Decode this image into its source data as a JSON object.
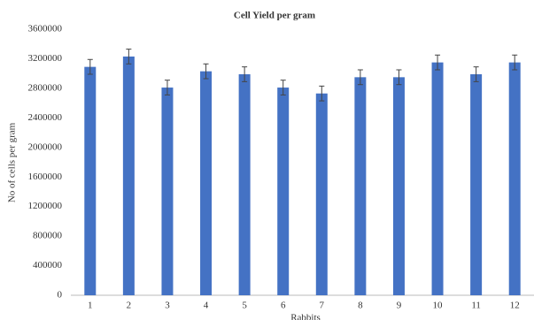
{
  "chart_data": {
    "type": "bar",
    "title": "Cell Yield per gram",
    "x_label": "Rabbits",
    "y_label": "No of cells per gram",
    "categories": [
      "1",
      "2",
      "3",
      "4",
      "5",
      "6",
      "7",
      "8",
      "9",
      "10",
      "11",
      "12"
    ],
    "values": [
      3090000,
      3230000,
      2810000,
      3030000,
      2990000,
      2810000,
      2730000,
      2950000,
      2950000,
      3150000,
      2990000,
      3150000
    ],
    "errors": [
      100000,
      100000,
      100000,
      100000,
      100000,
      100000,
      100000,
      100000,
      100000,
      100000,
      100000,
      100000
    ],
    "color": "#4472c4",
    "ylim": [
      0,
      3600000
    ],
    "yticks": [
      0,
      400000,
      800000,
      1200000,
      1600000,
      2000000,
      2400000,
      2800000,
      3200000,
      3600000
    ],
    "grid": false
  }
}
